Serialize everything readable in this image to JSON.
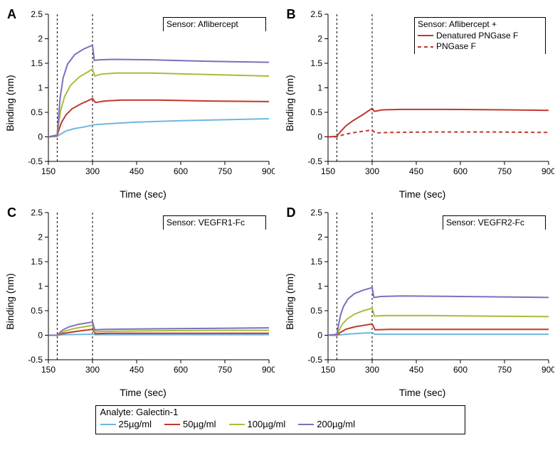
{
  "global": {
    "xlabel": "Time (sec)",
    "ylabel": "Binding (nm)",
    "xlim": [
      150,
      900
    ],
    "xticks": [
      150,
      300,
      450,
      600,
      750,
      900
    ],
    "ylim": [
      -0.5,
      2.5
    ],
    "yticks": [
      -0.5,
      0,
      0.5,
      1,
      1.5,
      2,
      2.5
    ],
    "ytick_labels": [
      "-0.5",
      "0",
      "0.5",
      "1",
      "1.5",
      "2",
      "2.5"
    ],
    "vlines": [
      180,
      300
    ],
    "tick_fontsize": 12,
    "label_fontsize": 14,
    "panel_label_fontsize": 18,
    "background_color": "#ffffff",
    "axis_color": "#000000",
    "line_width": 2
  },
  "analyte_legend": {
    "title": "Analyte: Galectin-1",
    "items": [
      {
        "label": "25µg/ml",
        "color": "#6fb6e0"
      },
      {
        "label": "50µg/ml",
        "color": "#c0392b"
      },
      {
        "label": "100µg/ml",
        "color": "#a6bd3c"
      },
      {
        "label": "200µg/ml",
        "color": "#7d6fbf"
      }
    ]
  },
  "panels": {
    "A": {
      "label": "A",
      "legend": {
        "title": "Sensor: Aflibercept",
        "pos": "top-right"
      },
      "series": [
        {
          "color": "#6fb6e0",
          "points": [
            [
              150,
              0
            ],
            [
              180,
              0.01
            ],
            [
              190,
              0.05
            ],
            [
              210,
              0.12
            ],
            [
              240,
              0.17
            ],
            [
              270,
              0.2
            ],
            [
              300,
              0.24
            ],
            [
              310,
              0.25
            ],
            [
              360,
              0.27
            ],
            [
              450,
              0.3
            ],
            [
              600,
              0.33
            ],
            [
              750,
              0.35
            ],
            [
              900,
              0.37
            ]
          ]
        },
        {
          "color": "#c0392b",
          "points": [
            [
              150,
              0
            ],
            [
              180,
              0.02
            ],
            [
              185,
              0.13
            ],
            [
              195,
              0.3
            ],
            [
              210,
              0.45
            ],
            [
              230,
              0.57
            ],
            [
              260,
              0.67
            ],
            [
              300,
              0.78
            ],
            [
              310,
              0.7
            ],
            [
              340,
              0.73
            ],
            [
              400,
              0.75
            ],
            [
              520,
              0.75
            ],
            [
              700,
              0.73
            ],
            [
              900,
              0.72
            ]
          ]
        },
        {
          "color": "#a6bd3c",
          "points": [
            [
              150,
              0
            ],
            [
              180,
              0.03
            ],
            [
              184,
              0.22
            ],
            [
              192,
              0.55
            ],
            [
              205,
              0.82
            ],
            [
              225,
              1.05
            ],
            [
              255,
              1.22
            ],
            [
              300,
              1.38
            ],
            [
              308,
              1.24
            ],
            [
              330,
              1.28
            ],
            [
              380,
              1.3
            ],
            [
              500,
              1.3
            ],
            [
              700,
              1.27
            ],
            [
              900,
              1.24
            ]
          ]
        },
        {
          "color": "#7d6fbf",
          "points": [
            [
              150,
              0
            ],
            [
              180,
              0.04
            ],
            [
              183,
              0.3
            ],
            [
              190,
              0.8
            ],
            [
              200,
              1.2
            ],
            [
              215,
              1.48
            ],
            [
              240,
              1.68
            ],
            [
              270,
              1.79
            ],
            [
              300,
              1.87
            ],
            [
              306,
              1.56
            ],
            [
              325,
              1.57
            ],
            [
              370,
              1.58
            ],
            [
              500,
              1.57
            ],
            [
              700,
              1.54
            ],
            [
              900,
              1.52
            ]
          ]
        }
      ]
    },
    "B": {
      "label": "B",
      "legend": {
        "title": "Sensor: Aflibercept +",
        "pos": "top-right",
        "rows": [
          {
            "label": "Denatured PNGase F",
            "color": "#c0392b",
            "dash": "none"
          },
          {
            "label": "PNGase F",
            "color": "#c0392b",
            "dash": "5 4"
          }
        ]
      },
      "series": [
        {
          "color": "#c0392b",
          "dash": "none",
          "points": [
            [
              150,
              0
            ],
            [
              180,
              0.01
            ],
            [
              190,
              0.09
            ],
            [
              210,
              0.22
            ],
            [
              235,
              0.33
            ],
            [
              265,
              0.44
            ],
            [
              300,
              0.58
            ],
            [
              308,
              0.52
            ],
            [
              335,
              0.55
            ],
            [
              400,
              0.56
            ],
            [
              550,
              0.56
            ],
            [
              750,
              0.55
            ],
            [
              900,
              0.54
            ]
          ]
        },
        {
          "color": "#c0392b",
          "dash": "5 4",
          "points": [
            [
              150,
              0
            ],
            [
              180,
              0.0
            ],
            [
              200,
              0.04
            ],
            [
              230,
              0.08
            ],
            [
              265,
              0.11
            ],
            [
              300,
              0.14
            ],
            [
              310,
              0.08
            ],
            [
              360,
              0.09
            ],
            [
              500,
              0.1
            ],
            [
              700,
              0.1
            ],
            [
              900,
              0.09
            ]
          ]
        }
      ]
    },
    "C": {
      "label": "C",
      "legend": {
        "title": "Sensor: VEGFR1-Fc",
        "pos": "top-right"
      },
      "series": [
        {
          "color": "#6fb6e0",
          "points": [
            [
              150,
              0
            ],
            [
              180,
              0.0
            ],
            [
              200,
              0.01
            ],
            [
              300,
              0.02
            ],
            [
              310,
              0.01
            ],
            [
              500,
              0.01
            ],
            [
              900,
              0.01
            ]
          ]
        },
        {
          "color": "#c0392b",
          "points": [
            [
              150,
              0
            ],
            [
              180,
              0.0
            ],
            [
              195,
              0.03
            ],
            [
              225,
              0.06
            ],
            [
              260,
              0.09
            ],
            [
              300,
              0.12
            ],
            [
              310,
              0.03
            ],
            [
              350,
              0.04
            ],
            [
              500,
              0.04
            ],
            [
              900,
              0.04
            ]
          ]
        },
        {
          "color": "#a6bd3c",
          "points": [
            [
              150,
              0
            ],
            [
              180,
              0.0
            ],
            [
              190,
              0.04
            ],
            [
              210,
              0.09
            ],
            [
              240,
              0.14
            ],
            [
              270,
              0.17
            ],
            [
              300,
              0.2
            ],
            [
              308,
              0.07
            ],
            [
              340,
              0.08
            ],
            [
              500,
              0.09
            ],
            [
              700,
              0.1
            ],
            [
              900,
              0.1
            ]
          ]
        },
        {
          "color": "#7d6fbf",
          "points": [
            [
              150,
              0
            ],
            [
              180,
              0.0
            ],
            [
              188,
              0.05
            ],
            [
              200,
              0.11
            ],
            [
              220,
              0.17
            ],
            [
              250,
              0.22
            ],
            [
              300,
              0.27
            ],
            [
              308,
              0.11
            ],
            [
              340,
              0.12
            ],
            [
              500,
              0.13
            ],
            [
              700,
              0.14
            ],
            [
              900,
              0.15
            ]
          ]
        }
      ]
    },
    "D": {
      "label": "D",
      "legend": {
        "title": "Sensor: VEGFR2-Fc",
        "pos": "top-right"
      },
      "series": [
        {
          "color": "#6fb6e0",
          "points": [
            [
              150,
              0
            ],
            [
              180,
              0.0
            ],
            [
              210,
              0.02
            ],
            [
              260,
              0.04
            ],
            [
              300,
              0.05
            ],
            [
              310,
              0.02
            ],
            [
              500,
              0.02
            ],
            [
              900,
              0.02
            ]
          ]
        },
        {
          "color": "#c0392b",
          "points": [
            [
              150,
              0
            ],
            [
              180,
              0.0
            ],
            [
              190,
              0.05
            ],
            [
              210,
              0.12
            ],
            [
              240,
              0.17
            ],
            [
              270,
              0.2
            ],
            [
              300,
              0.23
            ],
            [
              310,
              0.11
            ],
            [
              360,
              0.12
            ],
            [
              600,
              0.12
            ],
            [
              900,
              0.12
            ]
          ]
        },
        {
          "color": "#a6bd3c",
          "points": [
            [
              150,
              0
            ],
            [
              180,
              0.01
            ],
            [
              186,
              0.08
            ],
            [
              198,
              0.22
            ],
            [
              215,
              0.33
            ],
            [
              240,
              0.43
            ],
            [
              270,
              0.5
            ],
            [
              300,
              0.55
            ],
            [
              308,
              0.39
            ],
            [
              340,
              0.4
            ],
            [
              500,
              0.4
            ],
            [
              700,
              0.39
            ],
            [
              900,
              0.38
            ]
          ]
        },
        {
          "color": "#7d6fbf",
          "points": [
            [
              150,
              0
            ],
            [
              180,
              0.02
            ],
            [
              184,
              0.15
            ],
            [
              192,
              0.4
            ],
            [
              202,
              0.58
            ],
            [
              218,
              0.74
            ],
            [
              240,
              0.85
            ],
            [
              270,
              0.92
            ],
            [
              300,
              0.97
            ],
            [
              306,
              0.77
            ],
            [
              330,
              0.79
            ],
            [
              400,
              0.8
            ],
            [
              600,
              0.79
            ],
            [
              900,
              0.77
            ]
          ]
        }
      ]
    }
  }
}
